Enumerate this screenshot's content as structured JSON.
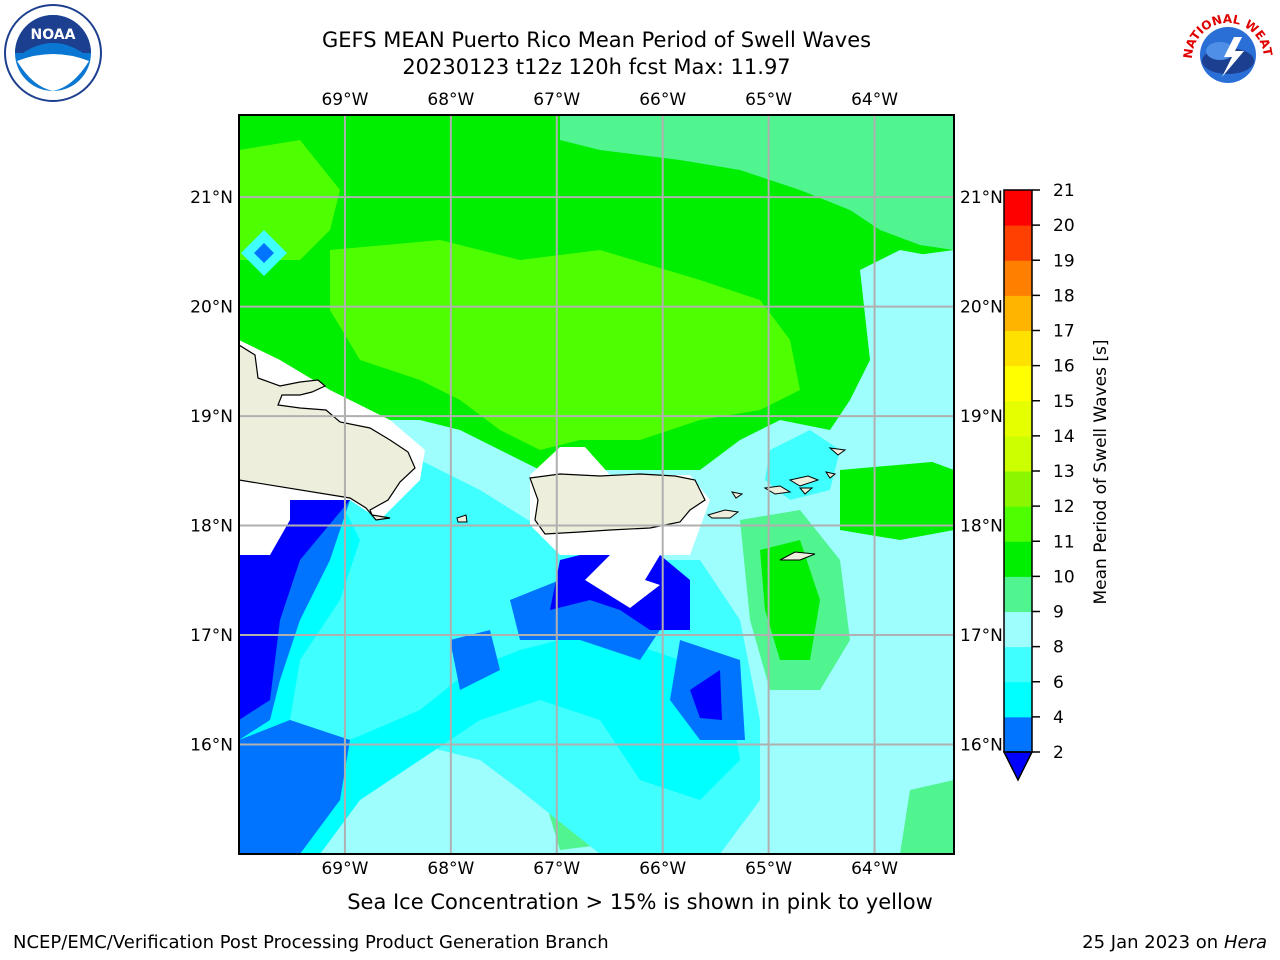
{
  "header": {
    "title_line1": "GEFS MEAN Puerto Rico Mean Period of Swell Waves",
    "title_line2": "20230123 t12z 120h fcst   Max: 11.97"
  },
  "logos": {
    "left": "NOAA",
    "right_ring_text": "NATIONAL WEATHER SERVICE"
  },
  "map": {
    "longitude_labels": [
      "69°W",
      "68°W",
      "67°W",
      "66°W",
      "65°W",
      "64°W"
    ],
    "latitude_labels": [
      "21°N",
      "20°N",
      "19°N",
      "18°N",
      "17°N",
      "16°N"
    ],
    "lon_range": [
      -70.0,
      -63.25
    ],
    "lat_range": [
      15.0,
      21.75
    ],
    "grid": true
  },
  "colorbar": {
    "label": "Mean Period of Swell Waves [s]",
    "ticks": [
      "2",
      "4",
      "6",
      "8",
      "9",
      "10",
      "11",
      "12",
      "13",
      "14",
      "15",
      "16",
      "17",
      "18",
      "19",
      "20",
      "21"
    ],
    "colors": [
      "#0000ff",
      "#0073ff",
      "#00ffff",
      "#40ffff",
      "#9efdfd",
      "#50f590",
      "#00ee00",
      "#4dff00",
      "#8cf500",
      "#ccff00",
      "#e5ff00",
      "#ffff00",
      "#ffe100",
      "#ffb400",
      "#ff8000",
      "#ff4000",
      "#ff0000"
    ],
    "extend": "min"
  },
  "footer": {
    "caption": "Sea Ice Concentration > 15% is shown in pink to yellow",
    "credit": "NCEP/EMC/Verification Post Processing Product Generation Branch",
    "date": "25 Jan 2023 on ",
    "machine": "Hera"
  }
}
